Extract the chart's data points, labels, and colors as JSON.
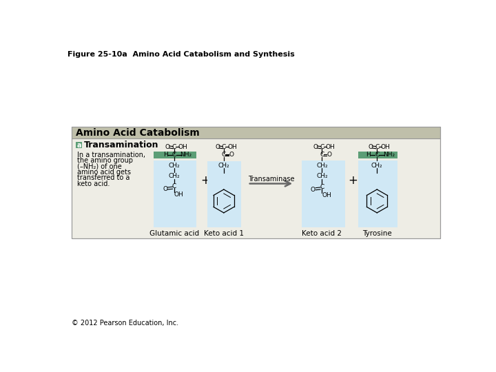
{
  "title": "Figure 25-10a  Amino Acid Catabolism and Synthesis",
  "section_title": "Amino Acid Catabolism",
  "subsection_label": "a",
  "subsection_title": "Transamination",
  "description_lines": [
    "In a transamination,",
    "the amino group",
    "(–NH₂) of one",
    "amino acid gets",
    "transferred to a",
    "keto acid."
  ],
  "enzyme_label": "Transaminase",
  "labels": [
    "Glutamic acid",
    "Keto acid 1",
    "Keto acid 2",
    "Tyrosine"
  ],
  "copyright": "© 2012 Pearson Education, Inc.",
  "bg_outer": "#ffffff",
  "bg_section_header": "#bfbfaa",
  "bg_section_body": "#eeede5",
  "bg_molecule_light": "#d0e8f5",
  "bg_molecule_highlight": "#5c9e76",
  "border_color": "#999999",
  "title_fontsize": 8,
  "section_title_fontsize": 10,
  "subsection_title_fontsize": 9,
  "label_fontsize": 7.5,
  "desc_fontsize": 7,
  "chem_fontsize": 6.5,
  "copyright_fontsize": 7
}
